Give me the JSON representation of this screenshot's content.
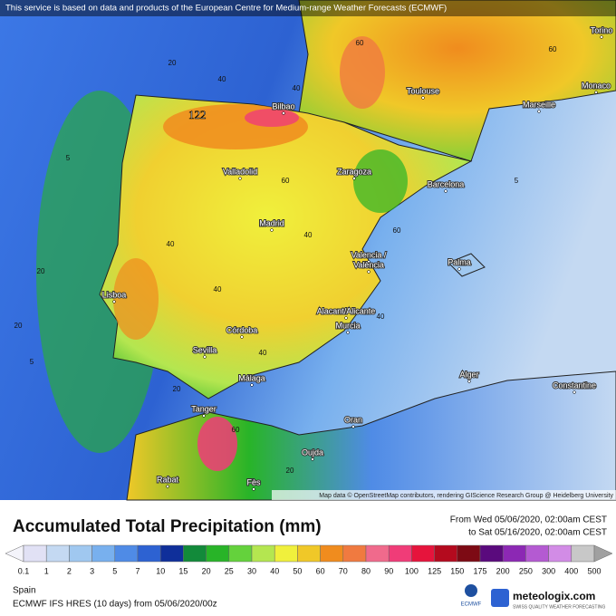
{
  "banner": "This service is based on data and products of the European Centre for Medium-range Weather Forecasts (ECMWF)",
  "max_value": "122",
  "cities": [
    "Bilbao",
    "Toulouse",
    "Marseille",
    "Monaco",
    "Torino",
    "Zaragoza",
    "Barcelona",
    "Valladolid",
    "Madrid",
    "Valencia /",
    "València",
    "Palma",
    "Lisboa",
    "Córdoba",
    "Sevilla",
    "Alacant/Alicante",
    "Murcia",
    "Málaga",
    "Tanger",
    "Alger",
    "Constantine",
    "Oran",
    "Oujda",
    "Rabat",
    "Fès"
  ],
  "contours": [
    "20",
    "40",
    "60",
    "40",
    "5",
    "60",
    "40",
    "20",
    "60",
    "40",
    "5",
    "40",
    "20",
    "60",
    "40",
    "5",
    "20",
    "40",
    "60",
    "20"
  ],
  "attribution": "Map data © OpenStreetMap contributors, rendering GIScience Research Group @ Heidelberg University",
  "title": "Accumulated Total Precipitation (mm)",
  "period_from": "From Wed 05/06/2020, 02:00am CEST",
  "period_to": "to Sat 05/16/2020, 02:00am CEST",
  "legend": {
    "labels": [
      "0.1",
      "1",
      "2",
      "3",
      "5",
      "7",
      "10",
      "15",
      "20",
      "25",
      "30",
      "40",
      "50",
      "60",
      "70",
      "80",
      "90",
      "100",
      "125",
      "150",
      "175",
      "200",
      "250",
      "300",
      "400",
      "500"
    ],
    "colors": [
      "#f4f4fb",
      "#e1e1f5",
      "#c4d9f2",
      "#a0c8f0",
      "#78b0ee",
      "#4f8be6",
      "#2d62d2",
      "#0f2f9a",
      "#128a3a",
      "#28b428",
      "#64d23c",
      "#b4e650",
      "#f0f03c",
      "#f0c828",
      "#f08c1e",
      "#f07a40",
      "#f06a8c",
      "#f03c78",
      "#e6143c",
      "#b40a1e",
      "#7d0a14",
      "#5a0a7d",
      "#8c28b4",
      "#b45ad2",
      "#d28ce6",
      "#c8c8c8",
      "#a0a0a0"
    ]
  },
  "footer": {
    "region": "Spain",
    "model": "ECMWF IFS HRES (10 days) from 05/06/2020/00z",
    "ecmwf": "ECMWF",
    "brand": "meteologix.com",
    "tagline": "SWISS QUALITY WEATHER FORECASTING"
  }
}
